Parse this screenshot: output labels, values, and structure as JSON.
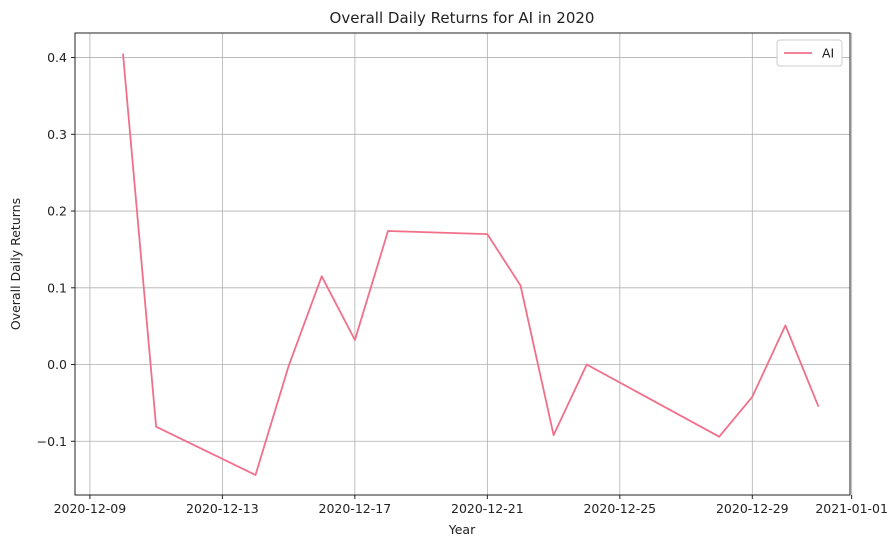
{
  "chart_data": {
    "type": "line",
    "title": "Overall Daily Returns for AI in 2020",
    "xlabel": "Year",
    "ylabel": "Overall Daily Returns",
    "grid": true,
    "legend_position": "top-right",
    "xlim": [
      "2020-12-09",
      "2021-01-01"
    ],
    "ylim": [
      -0.17,
      0.432
    ],
    "x_ticks": [
      "2020-12-09",
      "2020-12-13",
      "2020-12-17",
      "2020-12-21",
      "2020-12-25",
      "2020-12-29",
      "2021-01-01"
    ],
    "y_ticks": [
      -0.1,
      0.0,
      0.1,
      0.2,
      0.3,
      0.4
    ],
    "y_tick_labels": [
      "−0.1",
      "0.0",
      "0.1",
      "0.2",
      "0.3",
      "0.4"
    ],
    "series": [
      {
        "name": "AI",
        "color": "#f0708a",
        "points": [
          {
            "x": "2020-12-10",
            "y": 0.405
          },
          {
            "x": "2020-12-11",
            "y": -0.081
          },
          {
            "x": "2020-12-14",
            "y": -0.144
          },
          {
            "x": "2020-12-15",
            "y": -0.002
          },
          {
            "x": "2020-12-16",
            "y": 0.115
          },
          {
            "x": "2020-12-17",
            "y": 0.032
          },
          {
            "x": "2020-12-18",
            "y": 0.174
          },
          {
            "x": "2020-12-21",
            "y": 0.17
          },
          {
            "x": "2020-12-22",
            "y": 0.103
          },
          {
            "x": "2020-12-23",
            "y": -0.092
          },
          {
            "x": "2020-12-24",
            "y": 0.0
          },
          {
            "x": "2020-12-28",
            "y": -0.094
          },
          {
            "x": "2020-12-29",
            "y": -0.042
          },
          {
            "x": "2020-12-30",
            "y": 0.051
          },
          {
            "x": "2020-12-31",
            "y": -0.055
          }
        ]
      }
    ]
  }
}
